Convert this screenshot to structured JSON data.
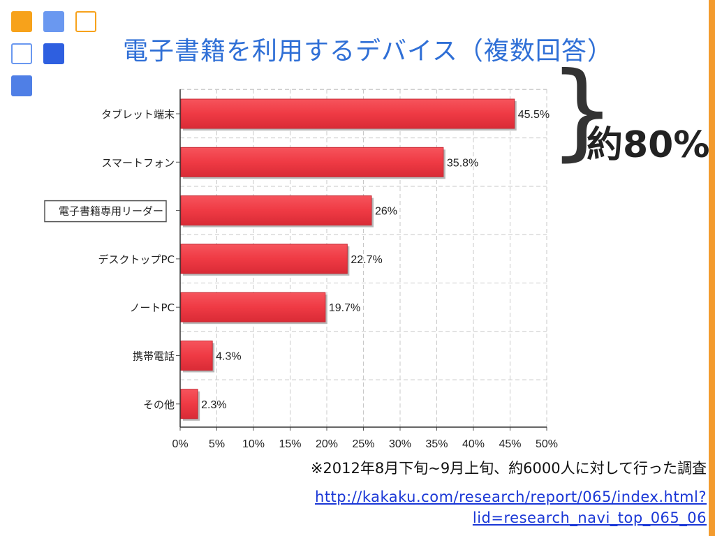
{
  "slide": {
    "title": "電子書籍を利用するデバイス（複数回答）",
    "annotation": "約80%",
    "brace": "}",
    "footnote": "※2012年8月下旬~9月上旬、約6000人に対して行った調査",
    "source_link_line1": "http://kakaku.com/research/report/065/index.html?",
    "source_link_line2": "lid=research_navi_top_065_06",
    "colors": {
      "title": "#2f6fd6",
      "bar": "#ef3a44",
      "accent_stripe": "#f39b2e"
    }
  },
  "chart_data": {
    "type": "bar",
    "orientation": "horizontal",
    "categories": [
      "タブレット端末",
      "スマートフォン",
      "電子書籍専用リーダー",
      "デスクトップPC",
      "ノートPC",
      "携帯電話",
      "その他"
    ],
    "values": [
      45.5,
      35.8,
      26,
      22.7,
      19.7,
      4.3,
      2.3
    ],
    "value_labels": [
      "45.5%",
      "35.8%",
      "26%",
      "22.7%",
      "19.7%",
      "4.3%",
      "2.3%"
    ],
    "highlighted_category": "電子書籍専用リーダー",
    "xlim": [
      0,
      50
    ],
    "x_ticks": [
      "0%",
      "5%",
      "10%",
      "15%",
      "20%",
      "25%",
      "30%",
      "35%",
      "40%",
      "45%",
      "50%"
    ],
    "grid": true,
    "title": "",
    "xlabel": "",
    "ylabel": ""
  }
}
